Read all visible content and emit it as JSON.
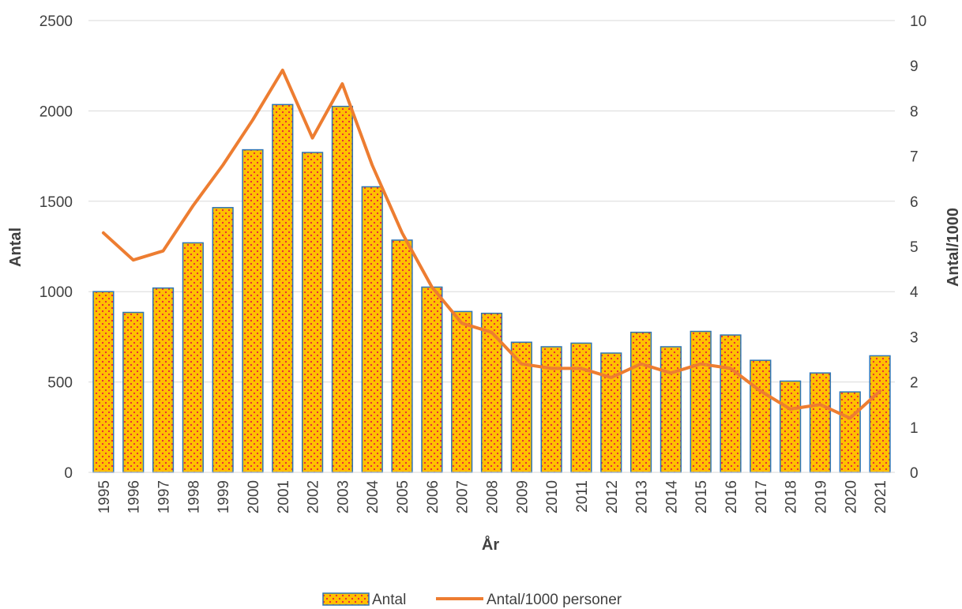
{
  "chart_data": {
    "type": "bar",
    "categories": [
      "1995",
      "1996",
      "1997",
      "1998",
      "1999",
      "2000",
      "2001",
      "2002",
      "2003",
      "2004",
      "2005",
      "2006",
      "2007",
      "2008",
      "2009",
      "2010",
      "2011",
      "2012",
      "2013",
      "2014",
      "2015",
      "2016",
      "2017",
      "2018",
      "2019",
      "2020",
      "2021"
    ],
    "series": [
      {
        "name": "Antal",
        "type": "bar",
        "axis": "left",
        "color": "#ffc000",
        "pattern_color": "#e8203a",
        "border_color": "#2e75b6",
        "values": [
          1000,
          885,
          1020,
          1270,
          1465,
          1785,
          2035,
          1770,
          2025,
          1580,
          1285,
          1025,
          890,
          880,
          720,
          695,
          715,
          660,
          775,
          695,
          780,
          760,
          620,
          505,
          550,
          445,
          645
        ]
      },
      {
        "name": "Antal/1000 personer",
        "type": "line",
        "axis": "right",
        "color": "#ed7d31",
        "values": [
          5.3,
          4.7,
          4.9,
          5.9,
          6.8,
          7.8,
          8.9,
          7.4,
          8.6,
          6.8,
          5.3,
          4.1,
          3.3,
          3.1,
          2.4,
          2.3,
          2.3,
          2.1,
          2.4,
          2.2,
          2.4,
          2.3,
          1.8,
          1.4,
          1.5,
          1.2,
          1.8
        ]
      }
    ],
    "xlabel": "År",
    "ylabel": "Antal",
    "y2label": "Antal/1000",
    "ylim": [
      0,
      2500
    ],
    "y2lim": [
      0,
      10
    ],
    "yticks": [
      0,
      500,
      1000,
      1500,
      2000,
      2500
    ],
    "y2ticks": [
      0,
      1,
      2,
      3,
      4,
      5,
      6,
      7,
      8,
      9,
      10
    ],
    "grid": true,
    "legend_position": "bottom"
  }
}
